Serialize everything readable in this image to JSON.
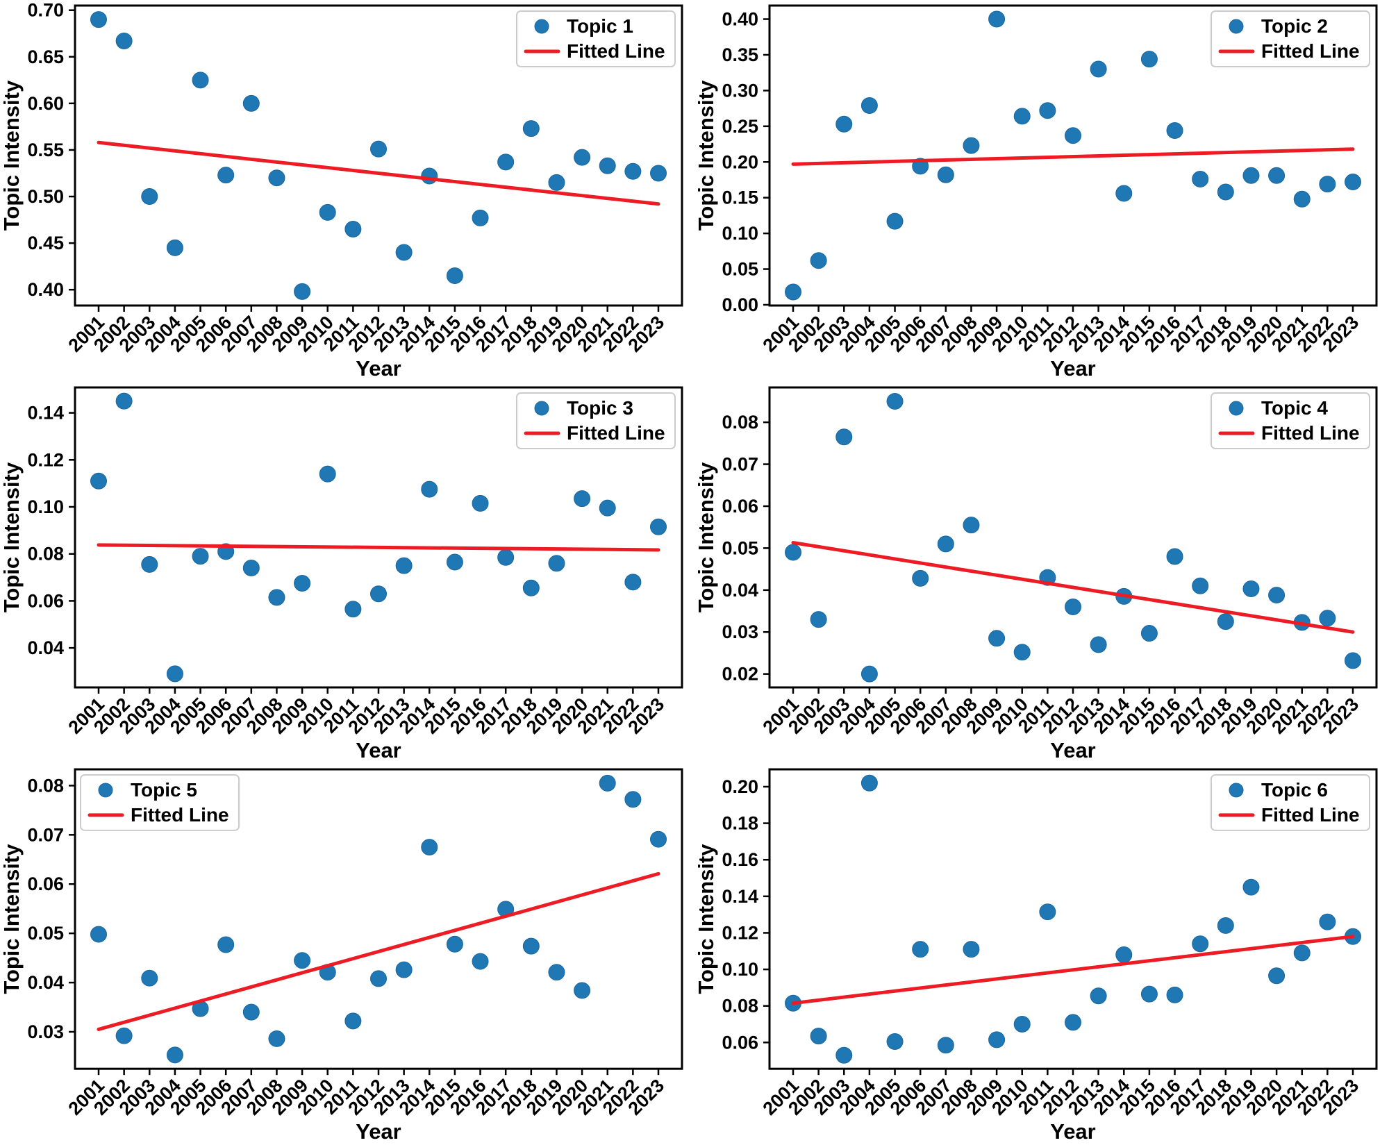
{
  "figure": {
    "xlabel": "Year",
    "ylabel": "Topic Intensity",
    "fitted_line_label": "Fitted Line",
    "colors": {
      "point_fill": "#1f77b4",
      "point_edge": "#1b689f",
      "fitted_line": "#ed1c24",
      "axis": "#000000",
      "legend_border": "#cccccc",
      "background": "#ffffff"
    }
  },
  "chart_data": [
    {
      "type": "scatter",
      "name": "Topic 1",
      "legend_entries": [
        "Topic 1",
        "Fitted Line"
      ],
      "legend_position": "top-right",
      "xlabel": "Year",
      "ylabel": "Topic Intensity",
      "x": [
        2001,
        2002,
        2003,
        2004,
        2005,
        2006,
        2007,
        2008,
        2009,
        2010,
        2011,
        2012,
        2013,
        2014,
        2015,
        2016,
        2017,
        2018,
        2019,
        2020,
        2021,
        2022,
        2023
      ],
      "values": [
        0.69,
        0.667,
        0.5,
        0.445,
        0.625,
        0.523,
        0.6,
        0.52,
        0.398,
        0.483,
        0.465,
        0.551,
        0.44,
        0.522,
        0.415,
        0.477,
        0.537,
        0.573,
        0.515,
        0.542,
        0.533,
        0.527,
        0.525
      ],
      "fitted_line": {
        "x": [
          2001,
          2023
        ],
        "y": [
          0.558,
          0.492
        ]
      },
      "ylim": [
        0.383,
        0.705
      ],
      "yticks": [
        0.4,
        0.45,
        0.5,
        0.55,
        0.6,
        0.65,
        0.7
      ],
      "grid": false
    },
    {
      "type": "scatter",
      "name": "Topic 2",
      "legend_entries": [
        "Topic 2",
        "Fitted Line"
      ],
      "legend_position": "top-right",
      "xlabel": "Year",
      "ylabel": "Topic Intensity",
      "x": [
        2001,
        2002,
        2003,
        2004,
        2005,
        2006,
        2007,
        2008,
        2009,
        2010,
        2011,
        2012,
        2013,
        2014,
        2015,
        2016,
        2017,
        2018,
        2019,
        2020,
        2021,
        2022,
        2023
      ],
      "values": [
        0.018,
        0.062,
        0.253,
        0.279,
        0.117,
        0.194,
        0.182,
        0.223,
        0.4,
        0.264,
        0.272,
        0.237,
        0.33,
        0.156,
        0.344,
        0.244,
        0.176,
        0.158,
        0.181,
        0.181,
        0.148,
        0.169,
        0.172
      ],
      "fitted_line": {
        "x": [
          2001,
          2023
        ],
        "y": [
          0.197,
          0.218
        ]
      },
      "ylim": [
        -0.001,
        0.419
      ],
      "yticks": [
        0.0,
        0.05,
        0.1,
        0.15,
        0.2,
        0.25,
        0.3,
        0.35,
        0.4
      ],
      "grid": false
    },
    {
      "type": "scatter",
      "name": "Topic 3",
      "legend_entries": [
        "Topic 3",
        "Fitted Line"
      ],
      "legend_position": "top-right",
      "xlabel": "Year",
      "ylabel": "Topic Intensity",
      "x": [
        2001,
        2002,
        2003,
        2004,
        2005,
        2006,
        2007,
        2008,
        2009,
        2010,
        2011,
        2012,
        2013,
        2014,
        2015,
        2016,
        2017,
        2018,
        2019,
        2020,
        2021,
        2022,
        2023
      ],
      "values": [
        0.111,
        0.145,
        0.0755,
        0.029,
        0.079,
        0.081,
        0.074,
        0.0615,
        0.0675,
        0.114,
        0.0565,
        0.063,
        0.075,
        0.1075,
        0.0765,
        0.1015,
        0.0785,
        0.0655,
        0.076,
        0.1035,
        0.0995,
        0.068,
        0.0915
      ],
      "fitted_line": {
        "x": [
          2001,
          2023
        ],
        "y": [
          0.0838,
          0.0817
        ]
      },
      "ylim": [
        0.0232,
        0.1508
      ],
      "yticks": [
        0.04,
        0.06,
        0.08,
        0.1,
        0.12,
        0.14
      ],
      "grid": false
    },
    {
      "type": "scatter",
      "name": "Topic 4",
      "legend_entries": [
        "Topic 4",
        "Fitted Line"
      ],
      "legend_position": "top-right",
      "xlabel": "Year",
      "ylabel": "Topic Intensity",
      "x": [
        2001,
        2002,
        2003,
        2004,
        2005,
        2006,
        2007,
        2008,
        2009,
        2010,
        2011,
        2012,
        2013,
        2014,
        2015,
        2016,
        2017,
        2018,
        2019,
        2020,
        2021,
        2022,
        2023
      ],
      "values": [
        0.049,
        0.033,
        0.0765,
        0.02,
        0.085,
        0.0428,
        0.051,
        0.0555,
        0.0285,
        0.0252,
        0.043,
        0.036,
        0.027,
        0.0385,
        0.0297,
        0.048,
        0.041,
        0.0325,
        0.0403,
        0.0388,
        0.0323,
        0.0333,
        0.0232
      ],
      "fitted_line": {
        "x": [
          2001,
          2023
        ],
        "y": [
          0.0513,
          0.03
        ]
      },
      "ylim": [
        0.0168,
        0.0883
      ],
      "yticks": [
        0.02,
        0.03,
        0.04,
        0.05,
        0.06,
        0.07,
        0.08
      ],
      "grid": false
    },
    {
      "type": "scatter",
      "name": "Topic 5",
      "legend_entries": [
        "Topic 5",
        "Fitted Line"
      ],
      "legend_position": "top-left",
      "xlabel": "Year",
      "ylabel": "Topic Intensity",
      "x": [
        2001,
        2002,
        2003,
        2004,
        2005,
        2006,
        2007,
        2008,
        2009,
        2010,
        2011,
        2012,
        2013,
        2014,
        2015,
        2016,
        2017,
        2018,
        2019,
        2020,
        2021,
        2022,
        2023
      ],
      "values": [
        0.0498,
        0.0292,
        0.0409,
        0.0253,
        0.0347,
        0.0477,
        0.034,
        0.0286,
        0.0445,
        0.0421,
        0.0322,
        0.0408,
        0.0426,
        0.0675,
        0.0478,
        0.0443,
        0.0549,
        0.0474,
        0.0421,
        0.0384,
        0.0805,
        0.0772,
        0.0691
      ],
      "fitted_line": {
        "x": [
          2001,
          2023
        ],
        "y": [
          0.0305,
          0.0621
        ]
      },
      "ylim": [
        0.0225,
        0.0833
      ],
      "yticks": [
        0.03,
        0.04,
        0.05,
        0.06,
        0.07,
        0.08
      ],
      "grid": false
    },
    {
      "type": "scatter",
      "name": "Topic 6",
      "legend_entries": [
        "Topic 6",
        "Fitted Line"
      ],
      "legend_position": "top-right",
      "xlabel": "Year",
      "ylabel": "Topic Intensity",
      "x": [
        2001,
        2002,
        2003,
        2004,
        2005,
        2006,
        2007,
        2008,
        2009,
        2010,
        2011,
        2012,
        2013,
        2014,
        2015,
        2016,
        2017,
        2018,
        2019,
        2020,
        2021,
        2022,
        2023
      ],
      "values": [
        0.0815,
        0.0635,
        0.053,
        0.202,
        0.0605,
        0.111,
        0.0585,
        0.111,
        0.0615,
        0.07,
        0.1315,
        0.071,
        0.0855,
        0.108,
        0.0865,
        0.086,
        0.114,
        0.124,
        0.145,
        0.0965,
        0.109,
        0.126,
        0.118
      ],
      "fitted_line": {
        "x": [
          2001,
          2023
        ],
        "y": [
          0.0815,
          0.118
        ]
      },
      "ylim": [
        0.0456,
        0.2095
      ],
      "yticks": [
        0.06,
        0.08,
        0.1,
        0.12,
        0.14,
        0.16,
        0.18,
        0.2
      ],
      "grid": false
    }
  ]
}
